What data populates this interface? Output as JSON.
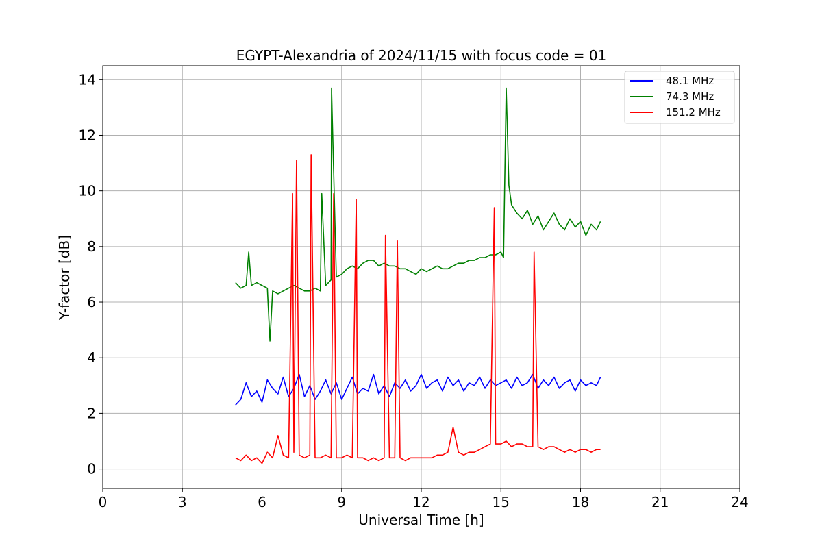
{
  "chart_data": {
    "type": "line",
    "title": "EGYPT-Alexandria of 2024/11/15 with focus code = 01",
    "xlabel": "Universal Time [h]",
    "ylabel": "Y-factor [dB]",
    "xlim": [
      0,
      24
    ],
    "ylim": [
      -0.7,
      14.5
    ],
    "xticks": [
      0,
      3,
      6,
      9,
      12,
      15,
      18,
      21,
      24
    ],
    "yticks": [
      0,
      2,
      4,
      6,
      8,
      10,
      12,
      14
    ],
    "grid": true,
    "legend_position": "top-right",
    "series": [
      {
        "name": "48.1 MHz",
        "color": "#0000ff",
        "x": [
          5.0,
          5.2,
          5.4,
          5.6,
          5.8,
          6.0,
          6.2,
          6.4,
          6.6,
          6.8,
          7.0,
          7.2,
          7.4,
          7.6,
          7.8,
          8.0,
          8.2,
          8.4,
          8.6,
          8.8,
          9.0,
          9.2,
          9.4,
          9.6,
          9.8,
          10.0,
          10.2,
          10.4,
          10.6,
          10.8,
          11.0,
          11.2,
          11.4,
          11.6,
          11.8,
          12.0,
          12.2,
          12.4,
          12.6,
          12.8,
          13.0,
          13.2,
          13.4,
          13.6,
          13.8,
          14.0,
          14.2,
          14.4,
          14.6,
          14.8,
          15.0,
          15.2,
          15.4,
          15.6,
          15.8,
          16.0,
          16.2,
          16.4,
          16.6,
          16.8,
          17.0,
          17.2,
          17.4,
          17.6,
          17.8,
          18.0,
          18.2,
          18.4,
          18.6,
          18.75
        ],
        "y": [
          2.3,
          2.5,
          3.1,
          2.6,
          2.8,
          2.4,
          3.2,
          2.9,
          2.7,
          3.3,
          2.6,
          2.9,
          3.4,
          2.6,
          3.0,
          2.5,
          2.8,
          3.2,
          2.7,
          3.1,
          2.5,
          2.9,
          3.3,
          2.7,
          2.9,
          2.8,
          3.4,
          2.7,
          3.0,
          2.6,
          3.1,
          2.9,
          3.2,
          2.8,
          3.0,
          3.4,
          2.9,
          3.1,
          3.2,
          2.8,
          3.3,
          3.0,
          3.2,
          2.8,
          3.1,
          3.0,
          3.3,
          2.9,
          3.2,
          3.0,
          3.1,
          3.2,
          2.9,
          3.3,
          3.0,
          3.1,
          3.4,
          2.9,
          3.2,
          3.0,
          3.3,
          2.9,
          3.1,
          3.2,
          2.8,
          3.2,
          3.0,
          3.1,
          3.0,
          3.3
        ]
      },
      {
        "name": "74.3 MHz",
        "color": "#008000",
        "x": [
          5.0,
          5.2,
          5.4,
          5.5,
          5.6,
          5.8,
          6.0,
          6.2,
          6.3,
          6.4,
          6.6,
          6.8,
          7.0,
          7.2,
          7.4,
          7.6,
          7.8,
          8.0,
          8.2,
          8.25,
          8.4,
          8.6,
          8.62,
          8.8,
          9.0,
          9.2,
          9.4,
          9.6,
          9.8,
          10.0,
          10.2,
          10.4,
          10.6,
          10.8,
          11.0,
          11.2,
          11.4,
          11.6,
          11.8,
          12.0,
          12.2,
          12.4,
          12.6,
          12.8,
          13.0,
          13.2,
          13.4,
          13.6,
          13.8,
          14.0,
          14.2,
          14.4,
          14.6,
          14.8,
          15.0,
          15.1,
          15.2,
          15.3,
          15.4,
          15.6,
          15.8,
          16.0,
          16.2,
          16.4,
          16.6,
          16.8,
          17.0,
          17.2,
          17.4,
          17.6,
          17.8,
          18.0,
          18.2,
          18.4,
          18.6,
          18.75
        ],
        "y": [
          6.7,
          6.5,
          6.6,
          7.8,
          6.6,
          6.7,
          6.6,
          6.5,
          4.6,
          6.4,
          6.3,
          6.4,
          6.5,
          6.6,
          6.5,
          6.4,
          6.4,
          6.5,
          6.4,
          9.9,
          6.6,
          6.8,
          13.7,
          6.9,
          7.0,
          7.2,
          7.3,
          7.2,
          7.4,
          7.5,
          7.5,
          7.3,
          7.4,
          7.3,
          7.3,
          7.2,
          7.2,
          7.1,
          7.0,
          7.2,
          7.1,
          7.2,
          7.3,
          7.2,
          7.2,
          7.3,
          7.4,
          7.4,
          7.5,
          7.5,
          7.6,
          7.6,
          7.7,
          7.7,
          7.8,
          7.6,
          13.7,
          10.2,
          9.5,
          9.2,
          9.0,
          9.3,
          8.8,
          9.1,
          8.6,
          8.9,
          9.2,
          8.8,
          8.6,
          9.0,
          8.7,
          8.9,
          8.4,
          8.8,
          8.6,
          8.9
        ]
      },
      {
        "name": "151.2 MHz",
        "color": "#ff0000",
        "x": [
          5.0,
          5.2,
          5.4,
          5.6,
          5.8,
          6.0,
          6.2,
          6.4,
          6.6,
          6.8,
          7.0,
          7.15,
          7.2,
          7.3,
          7.4,
          7.6,
          7.8,
          7.85,
          8.0,
          8.2,
          8.4,
          8.6,
          8.7,
          8.8,
          9.0,
          9.2,
          9.4,
          9.55,
          9.6,
          9.8,
          10.0,
          10.2,
          10.4,
          10.6,
          10.65,
          10.8,
          11.0,
          11.1,
          11.2,
          11.4,
          11.6,
          11.8,
          12.0,
          12.2,
          12.4,
          12.6,
          12.8,
          13.0,
          13.2,
          13.4,
          13.6,
          13.8,
          14.0,
          14.2,
          14.4,
          14.6,
          14.75,
          14.8,
          15.0,
          15.2,
          15.4,
          15.6,
          15.8,
          16.0,
          16.2,
          16.25,
          16.4,
          16.6,
          16.8,
          17.0,
          17.2,
          17.4,
          17.6,
          17.8,
          18.0,
          18.2,
          18.4,
          18.6,
          18.75
        ],
        "y": [
          0.4,
          0.3,
          0.5,
          0.3,
          0.4,
          0.2,
          0.6,
          0.4,
          1.2,
          0.5,
          0.4,
          9.9,
          0.6,
          11.1,
          0.5,
          0.4,
          0.5,
          11.3,
          0.4,
          0.4,
          0.5,
          0.4,
          9.9,
          0.4,
          0.4,
          0.5,
          0.4,
          9.7,
          0.4,
          0.4,
          0.3,
          0.4,
          0.3,
          0.4,
          8.4,
          0.4,
          0.4,
          8.2,
          0.4,
          0.3,
          0.4,
          0.4,
          0.4,
          0.4,
          0.4,
          0.5,
          0.5,
          0.6,
          1.5,
          0.6,
          0.5,
          0.6,
          0.6,
          0.7,
          0.8,
          0.9,
          9.4,
          0.9,
          0.9,
          1.0,
          0.8,
          0.9,
          0.9,
          0.8,
          0.8,
          7.8,
          0.8,
          0.7,
          0.8,
          0.8,
          0.7,
          0.6,
          0.7,
          0.6,
          0.7,
          0.7,
          0.6,
          0.7,
          0.7
        ]
      }
    ]
  }
}
